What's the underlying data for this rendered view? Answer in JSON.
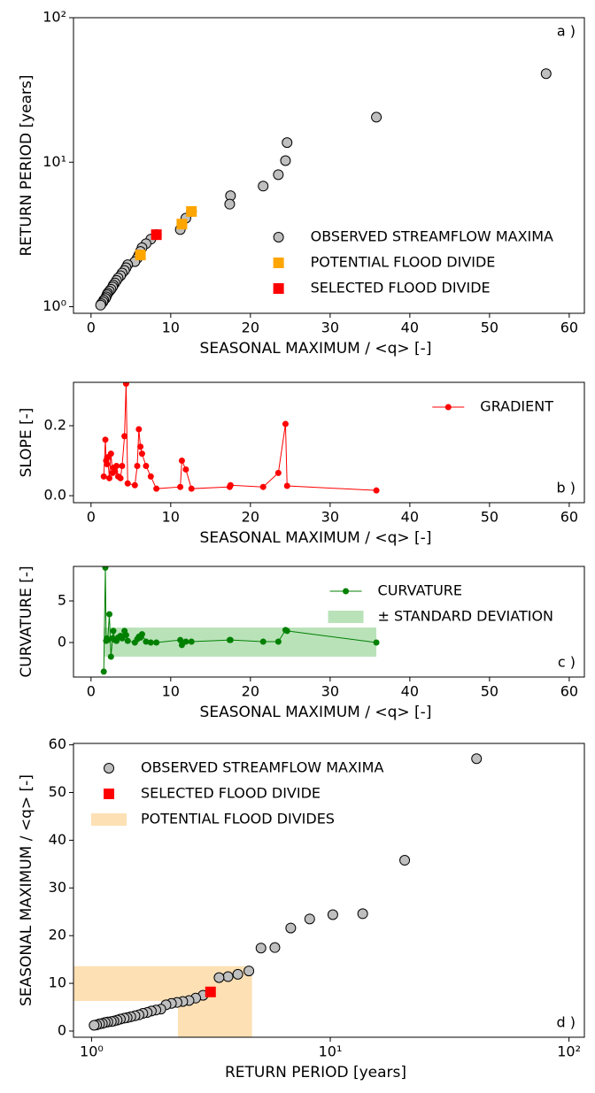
{
  "chart_data": [
    {
      "type": "scatter",
      "xlabel": "SEASONAL MAXIMUM / <q> [-]",
      "ylabel": "RETURN PERIOD [years]",
      "annotation": "a )",
      "annotation_corner": "upper right",
      "xlim": [
        -2.2,
        61.9
      ],
      "xticks": [
        0,
        10,
        20,
        30,
        40,
        50,
        60
      ],
      "ylim": [
        0.9,
        100
      ],
      "ylog": true,
      "yticks": [
        {
          "value": 1,
          "label": "10⁰"
        },
        {
          "value": 10,
          "label": "10¹"
        },
        {
          "value": 100,
          "label": "10²"
        }
      ],
      "legend": "lower right",
      "series": [
        {
          "name": "OBSERVED STREAMFLOW MAXIMA",
          "marker": "circle",
          "color": "#bfbfbf",
          "x": [
            57.1,
            35.8,
            24.6,
            24.4,
            23.5,
            21.6,
            17.5,
            17.4,
            12.6,
            11.9,
            11.4,
            11.2,
            8.2,
            7.5,
            6.9,
            6.4,
            6.2,
            6.0,
            5.8,
            5.5,
            4.6,
            4.4,
            4.2,
            3.9,
            3.7,
            3.4,
            3.2,
            3.0,
            2.8,
            2.7,
            2.5,
            2.3,
            2.1,
            2.0,
            1.9,
            1.8,
            1.6,
            1.5,
            1.3,
            1.2
          ],
          "values": [
            41,
            20.5,
            13.67,
            10.25,
            8.2,
            6.83,
            5.86,
            5.125,
            4.56,
            4.1,
            3.73,
            3.42,
            3.15,
            2.93,
            2.73,
            2.56,
            2.41,
            2.28,
            2.16,
            2.05,
            1.95,
            1.86,
            1.78,
            1.71,
            1.64,
            1.58,
            1.52,
            1.46,
            1.41,
            1.37,
            1.32,
            1.28,
            1.24,
            1.21,
            1.17,
            1.14,
            1.11,
            1.08,
            1.05,
            1.025
          ]
        },
        {
          "name": "POTENTIAL FLOOD DIVIDE",
          "marker": "square",
          "color": "#ffa500",
          "x": [
            12.6,
            11.4,
            6.2
          ],
          "values": [
            4.56,
            3.73,
            2.28
          ]
        },
        {
          "name": "SELECTED FLOOD DIVIDE",
          "marker": "square",
          "color": "#ff0000",
          "x": [
            8.2
          ],
          "values": [
            3.15
          ]
        }
      ]
    },
    {
      "type": "line",
      "xlabel": "SEASONAL MAXIMUM / <q> [-]",
      "ylabel": "SLOPE [-]",
      "annotation": "b )",
      "annotation_corner": "lower right",
      "xlim": [
        -2.2,
        61.9
      ],
      "xticks": [
        0,
        10,
        20,
        30,
        40,
        50,
        60
      ],
      "ylim": [
        -0.02,
        0.324
      ],
      "yticks": [
        {
          "value": 0,
          "label": "0.0"
        },
        0.2
      ],
      "legend": "upper right",
      "series": [
        {
          "name": "GRADIENT",
          "marker": "dot",
          "color": "#ff0000",
          "x": [
            1.6,
            1.8,
            1.9,
            2.0,
            2.1,
            2.3,
            2.5,
            2.7,
            2.8,
            3.0,
            3.2,
            3.4,
            3.7,
            3.9,
            4.2,
            4.4,
            4.6,
            5.5,
            5.8,
            6.0,
            6.2,
            6.4,
            6.9,
            7.5,
            8.2,
            11.2,
            11.4,
            11.9,
            12.6,
            17.4,
            17.5,
            21.6,
            23.5,
            24.4,
            24.6,
            35.8
          ],
          "values": [
            0.055,
            0.16,
            0.1,
            0.09,
            0.11,
            0.05,
            0.12,
            0.065,
            0.08,
            0.07,
            0.085,
            0.055,
            0.05,
            0.085,
            0.17,
            0.32,
            0.035,
            0.03,
            0.085,
            0.19,
            0.14,
            0.12,
            0.085,
            0.055,
            0.02,
            0.025,
            0.1,
            0.075,
            0.02,
            0.025,
            0.03,
            0.025,
            0.065,
            0.205,
            0.028,
            0.015
          ]
        }
      ]
    },
    {
      "type": "line",
      "xlabel": "SEASONAL MAXIMUM / <q> [-]",
      "ylabel": "CURVATURE [-]",
      "annotation": "c )",
      "annotation_corner": "lower right",
      "xlim": [
        -2.2,
        61.9
      ],
      "xticks": [
        0,
        10,
        20,
        30,
        40,
        50,
        60
      ],
      "ylim": [
        -4.15,
        9.15
      ],
      "yticks": [
        0,
        5
      ],
      "legend": "upper right",
      "series": [
        {
          "name": "CURVATURE",
          "marker": "dot",
          "color": "#008000",
          "x": [
            1.6,
            1.8,
            1.9,
            2.0,
            2.1,
            2.3,
            2.5,
            2.7,
            2.8,
            3.0,
            3.2,
            3.4,
            3.7,
            3.9,
            4.2,
            4.4,
            4.6,
            5.5,
            5.8,
            6.0,
            6.2,
            6.4,
            6.9,
            7.5,
            8.2,
            11.2,
            11.4,
            11.9,
            12.6,
            17.4,
            17.5,
            21.6,
            23.5,
            24.4,
            24.6,
            35.8
          ],
          "values": [
            -3.5,
            9,
            0.2,
            0.5,
            0.3,
            3.4,
            -1.7,
            0.5,
            1.4,
            0.3,
            0.2,
            0.6,
            0.8,
            0.5,
            1.4,
            0.9,
            0.2,
            0,
            0.4,
            0.7,
            0.6,
            1.0,
            0.1,
            0,
            0,
            0.3,
            -0.3,
            0.1,
            0.1,
            0.3,
            0.3,
            0.1,
            0.1,
            1.5,
            1.4,
            0
          ]
        }
      ],
      "bands": {
        "name": "± STANDARD DEVIATION",
        "color": "#b9e2b9",
        "rects": [
          {
            "x": [
              1.6,
              35.8
            ],
            "y": [
              -1.7,
              1.8
            ]
          }
        ]
      }
    },
    {
      "type": "scatter",
      "xlabel": "RETURN PERIOD [years]",
      "ylabel": "SEASONAL MAXIMUM / <q> [-]",
      "annotation": "d )",
      "annotation_corner": "lower right",
      "xlim": [
        0.84,
        116
      ],
      "xlog": true,
      "xticks": [
        {
          "value": 1,
          "label": "10⁰"
        },
        {
          "value": 10,
          "label": "10¹"
        },
        {
          "value": 100,
          "label": "10²"
        }
      ],
      "ylim": [
        -1.3,
        60.3
      ],
      "yticks": [
        0,
        10,
        20,
        30,
        40,
        50,
        60
      ],
      "legend": "upper left",
      "series": [
        {
          "name": "OBSERVED STREAMFLOW MAXIMA",
          "marker": "circle",
          "color": "#bfbfbf",
          "x": [
            41,
            20.5,
            13.67,
            10.25,
            8.2,
            6.83,
            5.86,
            5.125,
            4.56,
            4.1,
            3.73,
            3.42,
            2.93,
            2.73,
            2.56,
            2.41,
            2.28,
            2.16,
            2.05,
            1.95,
            1.86,
            1.78,
            1.71,
            1.64,
            1.58,
            1.52,
            1.46,
            1.41,
            1.37,
            1.32,
            1.28,
            1.24,
            1.21,
            1.17,
            1.14,
            1.11,
            1.08,
            1.05,
            1.025
          ],
          "values": [
            57.1,
            35.8,
            24.6,
            24.4,
            23.5,
            21.6,
            17.5,
            17.4,
            12.6,
            11.9,
            11.4,
            11.2,
            7.5,
            6.9,
            6.4,
            6.2,
            6.0,
            5.8,
            5.5,
            4.6,
            4.4,
            4.2,
            3.9,
            3.7,
            3.4,
            3.2,
            3.0,
            2.8,
            2.7,
            2.5,
            2.3,
            2.1,
            2.0,
            1.9,
            1.8,
            1.6,
            1.5,
            1.3,
            1.2
          ]
        },
        {
          "name": "SELECTED FLOOD DIVIDE",
          "marker": "square",
          "color": "#ff0000",
          "x": [
            3.15
          ],
          "values": [
            8.2
          ]
        }
      ],
      "bands": {
        "name": "POTENTIAL FLOOD DIVIDES",
        "color": "#fde0b4",
        "rects": [
          {
            "x": [
              0.84,
              2.3
            ],
            "y": [
              6.3,
              13.6
            ]
          },
          {
            "x": [
              2.3,
              4.7
            ],
            "y": [
              -1.3,
              13.6
            ]
          }
        ]
      }
    }
  ]
}
